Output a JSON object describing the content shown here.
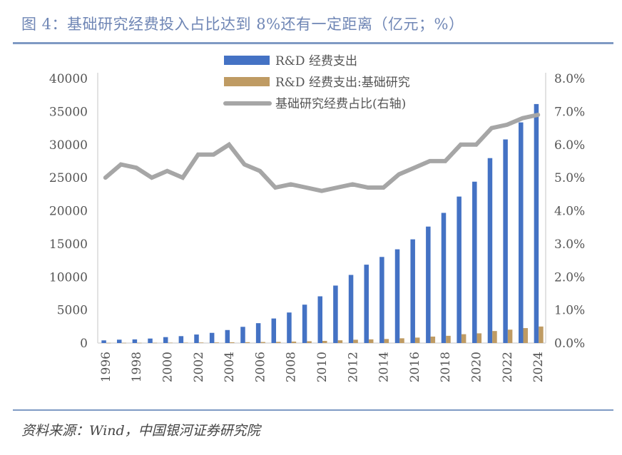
{
  "header": {
    "title": "图 4：基础研究经费投入占比达到 8%还有一定距离（亿元；%）"
  },
  "footer": {
    "source": "资料来源：Wind，中国银河证券研究院"
  },
  "colors": {
    "rd_total": "#4472c4",
    "basic_research": "#bf9b63",
    "share_line": "#a6a6a6",
    "title": "#6f86b5",
    "rule": "#7f9ac4"
  },
  "chart_data": {
    "type": "bar",
    "title": "基础研究经费投入占比达到 8%还有一定距离（亿元；%）",
    "xlabel": "",
    "ylabel": "亿元",
    "y2label": "%",
    "categories": [
      "1996",
      "1997",
      "1998",
      "1999",
      "2000",
      "2001",
      "2002",
      "2003",
      "2004",
      "2005",
      "2006",
      "2007",
      "2008",
      "2009",
      "2010",
      "2011",
      "2012",
      "2013",
      "2014",
      "2015",
      "2016",
      "2017",
      "2018",
      "2019",
      "2020",
      "2021",
      "2022",
      "2023",
      "2024"
    ],
    "x_tick_labels": [
      "1996",
      "1998",
      "2000",
      "2002",
      "2004",
      "2006",
      "2008",
      "2010",
      "2012",
      "2014",
      "2016",
      "2018",
      "2020",
      "2022",
      "2024"
    ],
    "ylim": [
      0,
      40000
    ],
    "y_ticks": [
      "0",
      "5000",
      "10000",
      "15000",
      "20000",
      "25000",
      "30000",
      "35000",
      "40000"
    ],
    "y2lim": [
      0,
      8.0
    ],
    "y2_ticks": [
      "0.0%",
      "1.0%",
      "2.0%",
      "3.0%",
      "4.0%",
      "5.0%",
      "6.0%",
      "7.0%",
      "8.0%"
    ],
    "grid": false,
    "legend_position": "top-center",
    "series": [
      {
        "name": "R&D 经费支出",
        "type": "bar",
        "axis": "left",
        "values": [
          404,
          509,
          551,
          679,
          896,
          1043,
          1288,
          1540,
          1966,
          2450,
          3003,
          3710,
          4616,
          5802,
          7063,
          8687,
          10298,
          11847,
          13016,
          14170,
          15677,
          17606,
          19678,
          22144,
          24393,
          27956,
          30783,
          33357,
          36130
        ]
      },
      {
        "name": "R&D 经费支出:基础研究",
        "type": "bar",
        "axis": "left",
        "values": [
          20,
          27,
          29,
          34,
          46,
          52,
          73,
          87,
          117,
          131,
          155,
          174,
          220,
          270,
          325,
          412,
          499,
          555,
          613,
          716,
          823,
          976,
          1091,
          1336,
          1467,
          1817,
          2023,
          2259,
          2497
        ]
      },
      {
        "name": "基础研究经费占比(右轴)",
        "type": "line",
        "axis": "right",
        "values": [
          5.0,
          5.4,
          5.3,
          5.0,
          5.2,
          5.0,
          5.7,
          5.7,
          6.0,
          5.4,
          5.2,
          4.7,
          4.8,
          4.7,
          4.6,
          4.7,
          4.8,
          4.7,
          4.7,
          5.1,
          5.3,
          5.5,
          5.5,
          6.0,
          6.0,
          6.5,
          6.6,
          6.8,
          6.9
        ]
      }
    ]
  }
}
